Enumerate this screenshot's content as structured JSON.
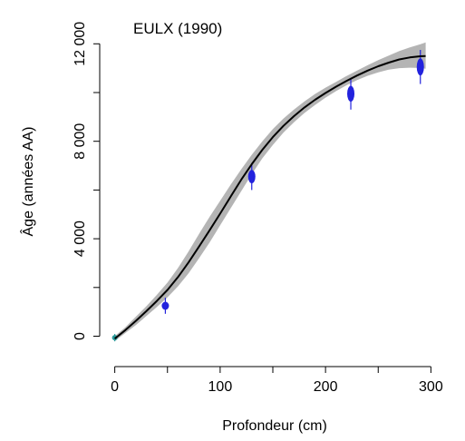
{
  "chart_data": {
    "type": "line",
    "title": "EULX (1990)",
    "xlabel": "Profondeur (cm)",
    "ylabel": "Âge (années AA)",
    "xlim": [
      -10,
      310
    ],
    "ylim": [
      -800,
      13500
    ],
    "x_ticks": [
      0,
      100,
      200,
      300
    ],
    "x_tick_labels": [
      "0",
      "100",
      "200",
      "300"
    ],
    "y_ticks": [
      0,
      4000,
      8000,
      12000
    ],
    "y_tick_labels": [
      "0",
      "4 000",
      "8 000",
      "12 000"
    ],
    "grid": false,
    "legend": "none",
    "colors": {
      "model_line": "#000000",
      "uncertainty_band": "#b4b4b4",
      "dates": "#2222dd",
      "surface_date": "#2a9a9a"
    },
    "series": [
      {
        "kind": "model-median",
        "x": [
          0,
          10,
          20,
          30,
          40,
          50,
          60,
          70,
          80,
          90,
          100,
          110,
          120,
          130,
          140,
          150,
          160,
          170,
          180,
          190,
          200,
          210,
          220,
          230,
          240,
          250,
          260,
          270,
          280,
          290,
          295
        ],
        "y": [
          -100,
          250,
          630,
          1030,
          1450,
          1900,
          2430,
          3030,
          3680,
          4350,
          5030,
          5730,
          6420,
          7060,
          7650,
          8170,
          8630,
          9030,
          9390,
          9700,
          9980,
          10240,
          10480,
          10700,
          10900,
          11080,
          11230,
          11360,
          11440,
          11490,
          11500
        ]
      },
      {
        "kind": "uncertainty-band",
        "x": [
          0,
          10,
          20,
          30,
          40,
          50,
          60,
          70,
          80,
          90,
          100,
          110,
          120,
          130,
          140,
          150,
          160,
          170,
          180,
          190,
          200,
          210,
          220,
          230,
          240,
          250,
          260,
          270,
          280,
          290,
          295
        ],
        "lower": [
          -200,
          130,
          460,
          830,
          1200,
          1600,
          2050,
          2580,
          3200,
          3850,
          4550,
          5250,
          5950,
          6650,
          7300,
          7850,
          8350,
          8780,
          9160,
          9490,
          9790,
          10060,
          10300,
          10510,
          10690,
          10830,
          10940,
          11000,
          11020,
          11010,
          10980
        ],
        "upper": [
          0,
          370,
          800,
          1230,
          1700,
          2200,
          2800,
          3480,
          4200,
          4900,
          5560,
          6220,
          6850,
          7450,
          8000,
          8500,
          8930,
          9300,
          9640,
          9940,
          10200,
          10440,
          10680,
          10900,
          11120,
          11330,
          11520,
          11700,
          11850,
          11980,
          12060
        ]
      },
      {
        "kind": "dated-levels",
        "points": [
          {
            "depth": 0,
            "age": -60,
            "spread": 150
          },
          {
            "depth": 48,
            "age": 1250,
            "spread": 330
          },
          {
            "depth": 130,
            "age": 6550,
            "spread": 550
          },
          {
            "depth": 224,
            "age": 9950,
            "spread": 650
          },
          {
            "depth": 290,
            "age": 11050,
            "spread": 700
          }
        ]
      }
    ]
  }
}
